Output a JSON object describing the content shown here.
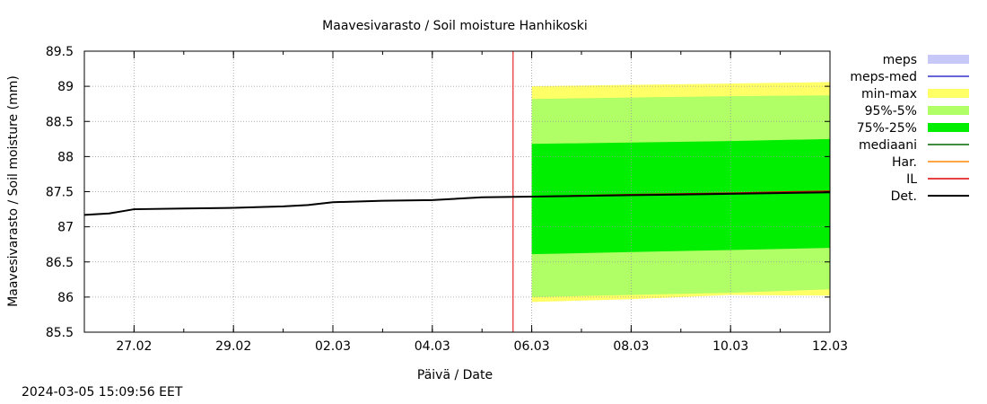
{
  "chart_data": {
    "type": "area",
    "title": "Maavesivarasto / Soil moisture   Hanhikoski",
    "xlabel": "Päivä / Date",
    "ylabel": "Maavesivarasto / Soil moisture (mm)",
    "ylim": [
      85.5,
      89.5
    ],
    "yticks": [
      85.5,
      86,
      86.5,
      87,
      87.5,
      88,
      88.5,
      89,
      89.5
    ],
    "ytick_labels": [
      "85.5",
      "86",
      "86.5",
      "87",
      "87.5",
      "88",
      "88.5",
      "89",
      "89.5"
    ],
    "xlim": [
      "2024-02-26",
      "2024-03-12"
    ],
    "xticks": [
      "2024-02-27",
      "2024-02-29",
      "2024-03-02",
      "2024-03-04",
      "2024-03-06",
      "2024-03-08",
      "2024-03-10",
      "2024-03-12"
    ],
    "xtick_labels": [
      "27.02",
      "29.02",
      "02.03",
      "04.03",
      "06.03",
      "08.03",
      "10.03",
      "12.03"
    ],
    "grid": true,
    "legend_position": "right",
    "forecast_start": "2024-03-05 15:00",
    "colors": {
      "meps": "#c8c8f8",
      "meps-med": "#3333cc",
      "min-max": "#ffff66",
      "95%-5%": "#b0ff66",
      "75%-25%": "#00ee00",
      "mediaani": "#006600",
      "Har.": "#ff8800",
      "IL": "#dd0000",
      "Det.": "#000000",
      "forecast_line": "#dd0000",
      "grid": "#999999"
    },
    "legend": [
      {
        "label": "meps",
        "kind": "box",
        "color": "#c8c8f8"
      },
      {
        "label": "meps-med",
        "kind": "line",
        "color": "#3333cc"
      },
      {
        "label": "min-max",
        "kind": "box",
        "color": "#ffff66"
      },
      {
        "label": "95%-5%",
        "kind": "box",
        "color": "#b0ff66"
      },
      {
        "label": "75%-25%",
        "kind": "box",
        "color": "#00ee00"
      },
      {
        "label": "mediaani",
        "kind": "line",
        "color": "#006600"
      },
      {
        "label": "Har.",
        "kind": "line",
        "color": "#ff8800"
      },
      {
        "label": "IL",
        "kind": "line",
        "color": "#dd0000"
      },
      {
        "label": "Det.",
        "kind": "line",
        "color": "#000000"
      }
    ],
    "bands": {
      "x": [
        "2024-03-06 00:00",
        "2024-03-08 00:00",
        "2024-03-10 00:00",
        "2024-03-12 00:00"
      ],
      "min_max": {
        "low": [
          85.93,
          85.97,
          86.03,
          86.02
        ],
        "high": [
          89.0,
          89.02,
          89.04,
          89.06
        ]
      },
      "p95_p5": {
        "low": [
          86.0,
          86.03,
          86.06,
          86.11
        ],
        "high": [
          88.82,
          88.84,
          88.86,
          88.87
        ]
      },
      "p75_p25": {
        "low": [
          86.61,
          86.64,
          86.67,
          86.7
        ],
        "high": [
          88.18,
          88.2,
          88.22,
          88.25
        ]
      }
    },
    "series": [
      {
        "name": "Det.",
        "x": [
          "2024-02-26 00:00",
          "2024-02-26 12:00",
          "2024-02-27 00:00",
          "2024-02-28 00:00",
          "2024-02-29 00:00",
          "2024-03-01 00:00",
          "2024-03-01 12:00",
          "2024-03-02 00:00",
          "2024-03-03 00:00",
          "2024-03-04 00:00",
          "2024-03-05 00:00",
          "2024-03-06 00:00",
          "2024-03-08 00:00",
          "2024-03-10 00:00",
          "2024-03-12 00:00"
        ],
        "values": [
          87.17,
          87.19,
          87.25,
          87.26,
          87.27,
          87.29,
          87.31,
          87.35,
          87.37,
          87.38,
          87.42,
          87.43,
          87.45,
          87.47,
          87.49
        ]
      },
      {
        "name": "IL",
        "x": [
          "2024-03-06 00:00",
          "2024-03-08 00:00",
          "2024-03-10 00:00",
          "2024-03-12 00:00"
        ],
        "values": [
          87.43,
          87.46,
          87.48,
          87.51
        ]
      },
      {
        "name": "mediaani",
        "x": [
          "2024-03-06 00:00",
          "2024-03-08 00:00",
          "2024-03-10 00:00",
          "2024-03-12 00:00"
        ],
        "values": [
          87.43,
          87.45,
          87.47,
          87.49
        ]
      }
    ]
  },
  "footer": {
    "timestamp": "2024-03-05 15:09:56 EET"
  }
}
